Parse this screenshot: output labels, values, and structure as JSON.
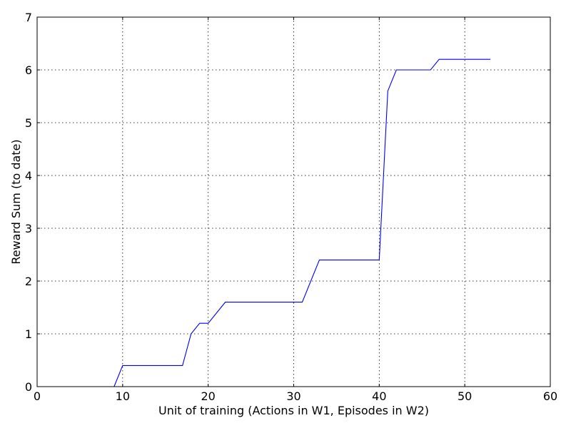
{
  "chart_data": {
    "type": "line",
    "title": "",
    "xlabel": "Unit of training (Actions in W1, Episodes in W2)",
    "ylabel": "Reward Sum (to date)",
    "xlim": [
      0,
      60
    ],
    "ylim": [
      0,
      7
    ],
    "xticks": [
      0,
      10,
      20,
      30,
      40,
      50,
      60
    ],
    "yticks": [
      0,
      1,
      2,
      3,
      4,
      5,
      6,
      7
    ],
    "xtick_labels": [
      "0",
      "10",
      "20",
      "30",
      "40",
      "50",
      "60"
    ],
    "ytick_labels": [
      "0",
      "1",
      "2",
      "3",
      "4",
      "5",
      "6",
      "7"
    ],
    "grid": true,
    "legend": "none",
    "series": [
      {
        "color": "#0000ff",
        "x": [
          9,
          10,
          17,
          18,
          19,
          20,
          22,
          31,
          33,
          40,
          41,
          42,
          46,
          47,
          53
        ],
        "y": [
          0,
          0.4,
          0.4,
          1.0,
          1.2,
          1.2,
          1.6,
          1.6,
          2.4,
          2.4,
          5.6,
          6.0,
          6.0,
          6.2,
          6.2
        ]
      }
    ]
  }
}
